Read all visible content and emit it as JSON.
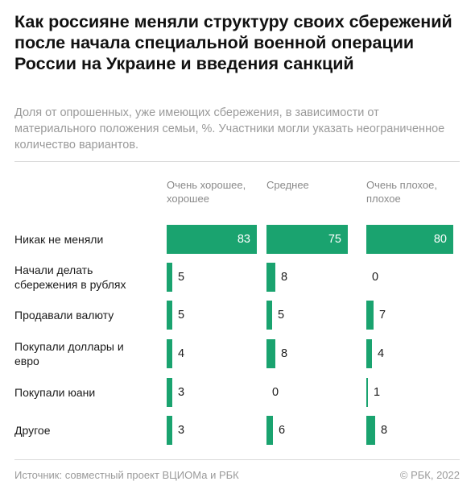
{
  "title": "Как россияне меняли структуру своих сбережений после начала специальной военной операции России на Украине и введения санкций",
  "subtitle": "Доля от опрошенных, уже имеющих сбережения, в зависимости от материального положения семьи, %. Участники могли указать неограниченное количество вариантов.",
  "footer": {
    "source": "Источник: совместный проект ВЦИОМа и РБК",
    "copyright": "© РБК, 2022"
  },
  "colors": {
    "bar": "#1aa36f"
  },
  "chart_data": {
    "type": "bar",
    "orientation": "horizontal",
    "categories": [
      "Никак не меняли",
      "Начали делать сбережения в рублях",
      "Продавали валюту",
      "Покупали доллары и евро",
      "Покупали юани",
      "Другое"
    ],
    "series": [
      {
        "name": "Очень хорошее, хорошее",
        "values": [
          83,
          5,
          5,
          4,
          3,
          3
        ]
      },
      {
        "name": "Среднее",
        "values": [
          75,
          8,
          5,
          8,
          0,
          6
        ]
      },
      {
        "name": "Очень плохое, плохое",
        "values": [
          80,
          0,
          7,
          4,
          1,
          8
        ]
      }
    ],
    "xlim": [
      0,
      83
    ],
    "unit": "%",
    "grid": false,
    "legend": "column-headers"
  }
}
